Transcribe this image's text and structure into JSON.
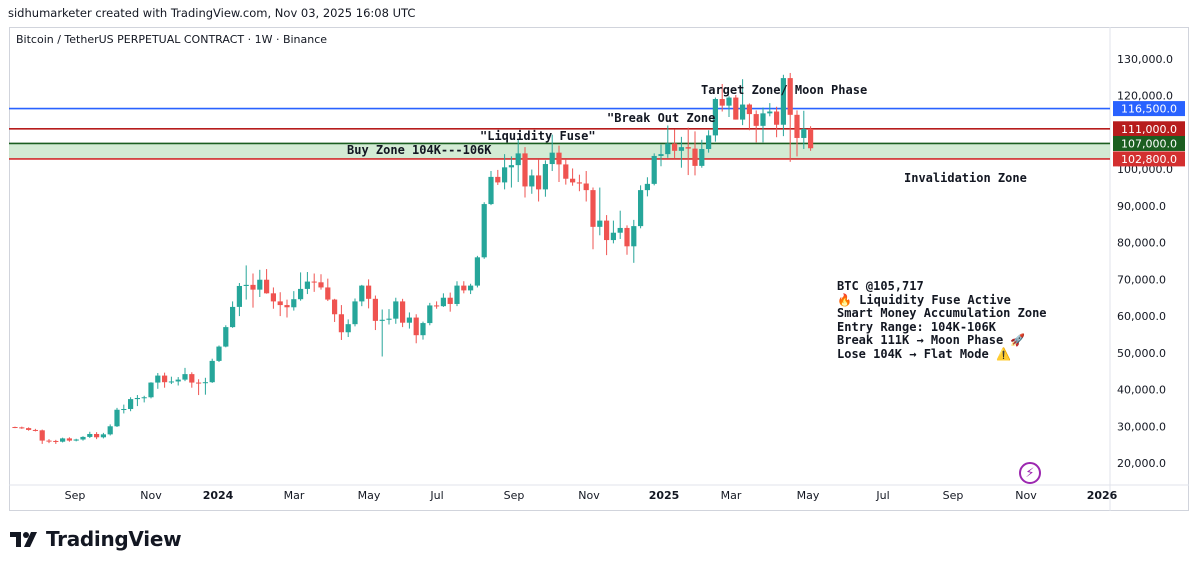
{
  "header": {
    "credit": "sidhumarketer created with TradingView.com, Nov 03, 2025 16:08 UTC",
    "symbol": "Bitcoin / TetherUS PERPETUAL CONTRACT · 1W · Binance"
  },
  "footer": {
    "brand": "TradingView"
  },
  "colors": {
    "up": "#26a69a",
    "down": "#ef5350",
    "blue_line": "#2962ff",
    "red_line": "#d32f2f",
    "zone_fill": "#c8e6c9",
    "zone_label": "#1b5e20"
  },
  "chart_data": {
    "type": "candlestick",
    "ylim": [
      15000,
      135000
    ],
    "y_ticks": [
      "20,000.0",
      "30,000.0",
      "40,000.0",
      "50,000.0",
      "60,000.0",
      "70,000.0",
      "80,000.0",
      "90,000.0",
      "100,000.0",
      "110,000.0",
      "120,000.0",
      "130,000.0"
    ],
    "x_ticks": [
      "Sep",
      "Nov",
      "2024",
      "Mar",
      "May",
      "Jul",
      "Sep",
      "Nov",
      "2025",
      "Mar",
      "May",
      "Jul",
      "Sep",
      "Nov",
      "2026"
    ],
    "price_levels": [
      {
        "label": "116,500.0",
        "value": 116500,
        "color": "#2962ff"
      },
      {
        "label": "111,000.0",
        "value": 111000,
        "color": "#b71c1c"
      },
      {
        "label": "107,000.0",
        "value": 107000,
        "color": "#1b5e20"
      },
      {
        "label": "102,800.0",
        "value": 102800,
        "color": "#d32f2f"
      }
    ],
    "buy_zone": [
      102800,
      107000
    ],
    "candles": [
      [
        29800,
        29900,
        29500,
        29700
      ],
      [
        29700,
        29900,
        29300,
        29500
      ],
      [
        29500,
        29700,
        28800,
        29000
      ],
      [
        29000,
        29300,
        28600,
        28900
      ],
      [
        28900,
        29100,
        25200,
        26100
      ],
      [
        26100,
        26500,
        25400,
        26000
      ],
      [
        26000,
        26300,
        25200,
        25800
      ],
      [
        25800,
        26900,
        25600,
        26700
      ],
      [
        26700,
        27000,
        25800,
        26100
      ],
      [
        26100,
        26600,
        25900,
        26400
      ],
      [
        26400,
        27300,
        26100,
        27100
      ],
      [
        27100,
        28500,
        26800,
        27900
      ],
      [
        27900,
        28400,
        26500,
        27000
      ],
      [
        27000,
        28200,
        26700,
        27800
      ],
      [
        27800,
        30500,
        27500,
        30000
      ],
      [
        30000,
        35000,
        29800,
        34500
      ],
      [
        34500,
        35900,
        33500,
        34700
      ],
      [
        34700,
        37900,
        34100,
        37400
      ],
      [
        37400,
        38500,
        35500,
        37700
      ],
      [
        37700,
        38300,
        36500,
        37900
      ],
      [
        37900,
        42000,
        37600,
        41900
      ],
      [
        41900,
        44500,
        40200,
        43800
      ],
      [
        43800,
        44600,
        40500,
        42000
      ],
      [
        42000,
        43500,
        41500,
        42200
      ],
      [
        42200,
        43400,
        41100,
        42700
      ],
      [
        42700,
        45900,
        42300,
        44200
      ],
      [
        44200,
        44700,
        40500,
        41900
      ],
      [
        41900,
        42800,
        38500,
        41800
      ],
      [
        41800,
        43200,
        38600,
        42000
      ],
      [
        42000,
        48400,
        41800,
        47800
      ],
      [
        47800,
        52000,
        47500,
        51700
      ],
      [
        51700,
        57500,
        51500,
        57000
      ],
      [
        57000,
        64000,
        56800,
        62500
      ],
      [
        62500,
        69000,
        60000,
        68200
      ],
      [
        68200,
        73800,
        64500,
        68500
      ],
      [
        68500,
        71600,
        62300,
        67200
      ],
      [
        67200,
        72600,
        65200,
        69900
      ],
      [
        69900,
        72800,
        66100,
        66200
      ],
      [
        66200,
        67800,
        62000,
        64000
      ],
      [
        64000,
        66500,
        60000,
        63000
      ],
      [
        63000,
        64500,
        59600,
        62400
      ],
      [
        62400,
        66800,
        61500,
        64600
      ],
      [
        64600,
        71900,
        64200,
        67400
      ],
      [
        67400,
        72000,
        66000,
        69400
      ],
      [
        69400,
        71600,
        66600,
        69200
      ],
      [
        69200,
        71400,
        67200,
        67800
      ],
      [
        67800,
        70200,
        64100,
        64500
      ],
      [
        64500,
        64700,
        58400,
        60500
      ],
      [
        60500,
        63000,
        53500,
        55600
      ],
      [
        55600,
        59100,
        54300,
        57800
      ],
      [
        57800,
        64800,
        57200,
        64000
      ],
      [
        64000,
        68500,
        62700,
        68300
      ],
      [
        68300,
        70000,
        62100,
        64700
      ],
      [
        64700,
        65600,
        56200,
        58700
      ],
      [
        58700,
        61800,
        49000,
        59000
      ],
      [
        59000,
        61900,
        57700,
        59300
      ],
      [
        59300,
        65000,
        57900,
        64000
      ],
      [
        64000,
        64700,
        57000,
        58200
      ],
      [
        58200,
        61000,
        56600,
        59600
      ],
      [
        59600,
        60500,
        52600,
        54800
      ],
      [
        54800,
        58500,
        53600,
        58100
      ],
      [
        58100,
        63600,
        57500,
        62900
      ],
      [
        62900,
        64000,
        62000,
        62700
      ],
      [
        62700,
        66200,
        62500,
        65000
      ],
      [
        65000,
        66400,
        61200,
        63300
      ],
      [
        63300,
        69500,
        62700,
        68300
      ],
      [
        68300,
        69500,
        66200,
        67000
      ],
      [
        67000,
        68800,
        66000,
        68300
      ],
      [
        68300,
        76400,
        67800,
        76000
      ],
      [
        76000,
        91000,
        75600,
        90500
      ],
      [
        90500,
        99500,
        90200,
        97900
      ],
      [
        97900,
        99800,
        95700,
        96400
      ],
      [
        96400,
        104100,
        94500,
        100500
      ],
      [
        100500,
        103500,
        95000,
        101100
      ],
      [
        101100,
        108300,
        96500,
        104300
      ],
      [
        104300,
        106000,
        92300,
        95300
      ],
      [
        95300,
        99900,
        93300,
        98300
      ],
      [
        98300,
        102700,
        91200,
        94500
      ],
      [
        94500,
        102400,
        92500,
        101400
      ],
      [
        101400,
        109400,
        99500,
        104500
      ],
      [
        104500,
        106400,
        96500,
        101300
      ],
      [
        101300,
        102600,
        95800,
        97400
      ],
      [
        97400,
        100200,
        95500,
        96400
      ],
      [
        96400,
        98500,
        94000,
        96100
      ],
      [
        96100,
        99500,
        91200,
        94300
      ],
      [
        94300,
        95000,
        78200,
        84300
      ],
      [
        84300,
        95000,
        82000,
        86000
      ],
      [
        86000,
        87500,
        76600,
        80700
      ],
      [
        80700,
        86000,
        79800,
        82700
      ],
      [
        82700,
        88700,
        81000,
        84000
      ],
      [
        84000,
        84700,
        76700,
        79000
      ],
      [
        79000,
        86200,
        74500,
        84500
      ],
      [
        84500,
        95600,
        83900,
        94300
      ],
      [
        94300,
        97800,
        92600,
        96000
      ],
      [
        96000,
        104300,
        95600,
        103600
      ],
      [
        103600,
        106700,
        100800,
        104100
      ],
      [
        104100,
        111900,
        103100,
        107000
      ],
      [
        107000,
        110800,
        103000,
        105000
      ],
      [
        105000,
        108800,
        100400,
        106000
      ],
      [
        106000,
        111300,
        98400,
        105600
      ],
      [
        105600,
        110300,
        98300,
        100900
      ],
      [
        100900,
        108000,
        100400,
        105500
      ],
      [
        105500,
        110600,
        104500,
        109200
      ],
      [
        109200,
        119500,
        107500,
        119100
      ],
      [
        119100,
        123200,
        115700,
        117300
      ],
      [
        117300,
        119900,
        114200,
        119500
      ],
      [
        119500,
        120200,
        113500,
        113500
      ],
      [
        113500,
        124500,
        112000,
        117600
      ],
      [
        117600,
        117900,
        110600,
        115000
      ],
      [
        115000,
        116000,
        107300,
        111800
      ],
      [
        111800,
        116800,
        107300,
        115200
      ],
      [
        115200,
        118000,
        114400,
        115700
      ],
      [
        115700,
        117000,
        108700,
        112100
      ],
      [
        112100,
        125700,
        109000,
        124800
      ],
      [
        124800,
        126200,
        102000,
        114800
      ],
      [
        114800,
        116000,
        103500,
        108500
      ],
      [
        108500,
        115900,
        105500,
        111000
      ],
      [
        111000,
        111700,
        105000,
        105700
      ]
    ]
  },
  "annotations": {
    "target": "Target Zone/ Moon Phase",
    "breakout": "\"Break Out Zone",
    "fuse": "\"Liquidity Fuse\"",
    "buyzone": "Buy Zone 104K---106K",
    "invalidation": "Invalidation Zone"
  },
  "note": {
    "line1": "BTC @105,717",
    "line2": "🔥 Liquidity Fuse Active",
    "line3": "Smart Money Accumulation Zone",
    "line4": "Entry Range: 104K-106K",
    "line5": "Break 111K → Moon Phase 🚀",
    "line6": "Lose 104K → Flat Mode ⚠️"
  }
}
